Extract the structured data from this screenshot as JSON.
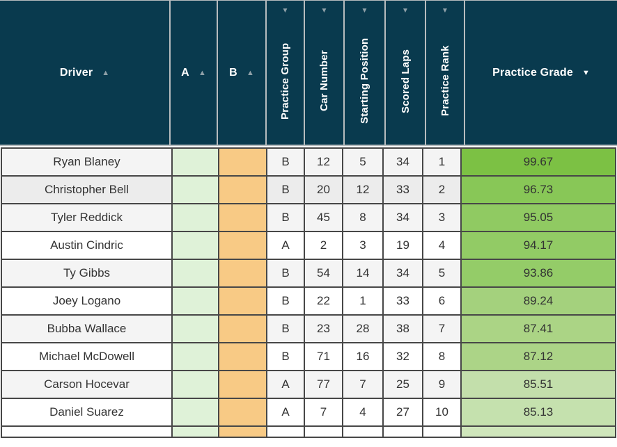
{
  "header": {
    "columns": [
      {
        "id": "driver",
        "label": "Driver",
        "orientation": "horizontal",
        "sort": {
          "direction": "asc",
          "active": false
        }
      },
      {
        "id": "a",
        "label": "A",
        "orientation": "horizontal",
        "sort": {
          "direction": "asc",
          "active": false
        }
      },
      {
        "id": "b",
        "label": "B",
        "orientation": "horizontal",
        "sort": {
          "direction": "asc",
          "active": false
        }
      },
      {
        "id": "practice-group",
        "label": "Practice Group",
        "orientation": "vertical",
        "sort": {
          "direction": "desc",
          "active": false
        }
      },
      {
        "id": "car-number",
        "label": "Car Number",
        "orientation": "vertical",
        "sort": {
          "direction": "desc",
          "active": false
        }
      },
      {
        "id": "starting-position",
        "label": "Starting Position",
        "orientation": "vertical",
        "sort": {
          "direction": "desc",
          "active": false
        }
      },
      {
        "id": "scored-laps",
        "label": "Scored Laps",
        "orientation": "vertical",
        "sort": {
          "direction": "desc",
          "active": false
        }
      },
      {
        "id": "practice-rank",
        "label": "Practice Rank",
        "orientation": "vertical",
        "sort": {
          "direction": "desc",
          "active": false
        }
      },
      {
        "id": "practice-grade",
        "label": "Practice Grade",
        "orientation": "horizontal",
        "sort": {
          "direction": "desc",
          "active": true
        }
      }
    ]
  },
  "rows": [
    {
      "driver": "Ryan Blaney",
      "practice_group": "B",
      "car_number": "12",
      "starting_position": "5",
      "scored_laps": "34",
      "practice_rank": "1",
      "practice_grade": "99.67",
      "grade_bg": "#7cc144",
      "row_bg": "#f4f4f4"
    },
    {
      "driver": "Christopher Bell",
      "practice_group": "B",
      "car_number": "20",
      "starting_position": "12",
      "scored_laps": "33",
      "practice_rank": "2",
      "practice_grade": "96.73",
      "grade_bg": "#88c757",
      "row_bg": "#ececec"
    },
    {
      "driver": "Tyler Reddick",
      "practice_group": "B",
      "car_number": "45",
      "starting_position": "8",
      "scored_laps": "34",
      "practice_rank": "3",
      "practice_grade": "95.05",
      "grade_bg": "#90ca62",
      "row_bg": "#f4f4f4"
    },
    {
      "driver": "Austin Cindric",
      "practice_group": "A",
      "car_number": "2",
      "starting_position": "3",
      "scored_laps": "19",
      "practice_rank": "4",
      "practice_grade": "94.17",
      "grade_bg": "#92cb65",
      "row_bg": "#ffffff"
    },
    {
      "driver": "Ty Gibbs",
      "practice_group": "B",
      "car_number": "54",
      "starting_position": "14",
      "scored_laps": "34",
      "practice_rank": "5",
      "practice_grade": "93.86",
      "grade_bg": "#94cc68",
      "row_bg": "#f4f4f4"
    },
    {
      "driver": "Joey Logano",
      "practice_group": "B",
      "car_number": "22",
      "starting_position": "1",
      "scored_laps": "33",
      "practice_rank": "6",
      "practice_grade": "89.24",
      "grade_bg": "#a4d17d",
      "row_bg": "#ffffff"
    },
    {
      "driver": "Bubba Wallace",
      "practice_group": "B",
      "car_number": "23",
      "starting_position": "28",
      "scored_laps": "38",
      "practice_rank": "7",
      "practice_grade": "87.41",
      "grade_bg": "#abd485",
      "row_bg": "#f4f4f4"
    },
    {
      "driver": "Michael McDowell",
      "practice_group": "B",
      "car_number": "71",
      "starting_position": "16",
      "scored_laps": "32",
      "practice_rank": "8",
      "practice_grade": "87.12",
      "grade_bg": "#acd487",
      "row_bg": "#ffffff"
    },
    {
      "driver": "Carson Hocevar",
      "practice_group": "A",
      "car_number": "77",
      "starting_position": "7",
      "scored_laps": "25",
      "practice_rank": "9",
      "practice_grade": "85.51",
      "grade_bg": "#c3dfab",
      "row_bg": "#f4f4f4"
    },
    {
      "driver": "Daniel Suarez",
      "practice_group": "A",
      "car_number": "7",
      "starting_position": "4",
      "scored_laps": "27",
      "practice_rank": "10",
      "practice_grade": "85.13",
      "grade_bg": "#c5e1ae",
      "row_bg": "#ffffff"
    }
  ],
  "partial_row": {
    "row_bg": "#ffffff",
    "grade_bg": "#cfe6bb"
  },
  "colors": {
    "header_bg": "#093a4e",
    "header_text": "#ffffff",
    "header_divider": "#b7bcbe",
    "sort_arrow_inactive": "#8fa0a8",
    "sort_arrow_active": "#ffffff",
    "body_border": "#474747",
    "body_text": "#333333",
    "a_column_bg": "#dff2d8",
    "b_column_bg": "#f8ca85"
  },
  "icons": {
    "sort_asc": "▲",
    "sort_desc": "▼"
  }
}
